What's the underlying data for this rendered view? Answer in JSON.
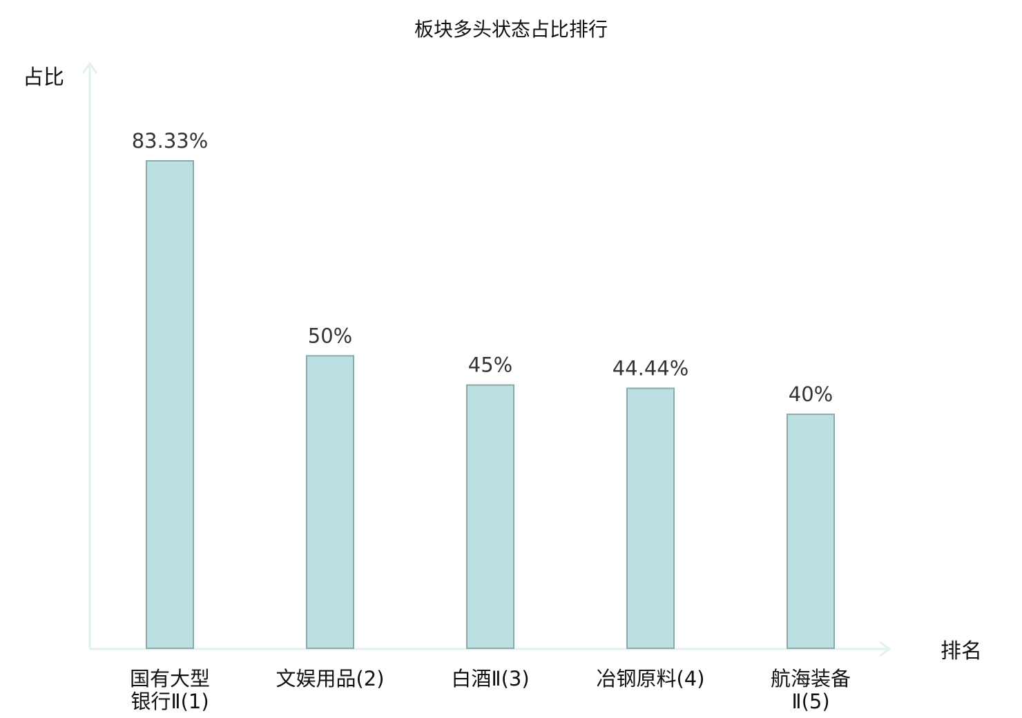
{
  "chart_data": {
    "type": "bar",
    "title": "板块多头状态占比排行",
    "ylabel": "占比",
    "xlabel": "排名",
    "ylim": [
      0,
      100
    ],
    "grid": false,
    "categories": [
      [
        "国有大型",
        "银行Ⅱ(1)"
      ],
      [
        "文娱用品(2)"
      ],
      [
        "白酒Ⅱ(3)"
      ],
      [
        "冶钢原料(4)"
      ],
      [
        "航海装备",
        "Ⅱ(5)"
      ]
    ],
    "values": [
      83.33,
      50,
      45,
      44.44,
      40
    ],
    "value_labels": [
      "83.33%",
      "50%",
      "45%",
      "44.44%",
      "40%"
    ],
    "highlight_index": 3,
    "colors": {
      "bar_fill": "#bce0e2",
      "bar_stroke": "#8aa9aa",
      "axis": "#dff1f0",
      "highlight_label": "#dd0000",
      "label": "#111111",
      "value_text": "#333333"
    }
  }
}
